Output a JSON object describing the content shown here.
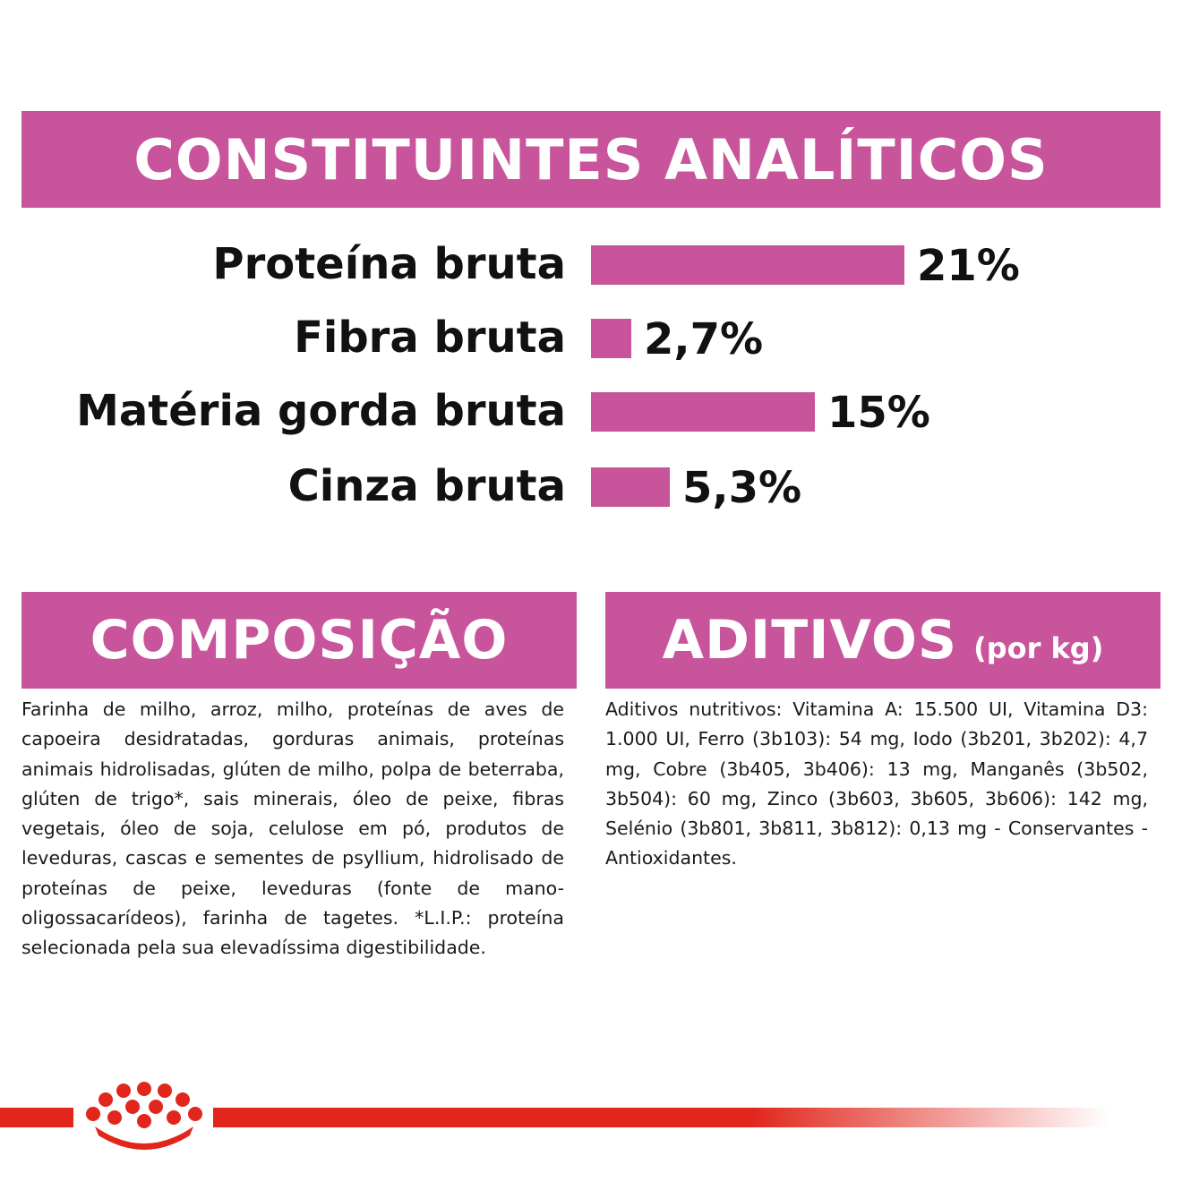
{
  "analytics": {
    "title": "CONSTITUINTES ANALÍTICOS",
    "items": [
      {
        "label": "Proteína bruta",
        "value": "21%",
        "percent": 21
      },
      {
        "label": "Fibra bruta",
        "value": "2,7%",
        "percent": 2.7
      },
      {
        "label": "Matéria gorda bruta",
        "value": "15%",
        "percent": 15
      },
      {
        "label": "Cinza bruta",
        "value": "5,3%",
        "percent": 5.3
      }
    ]
  },
  "composition": {
    "title": "COMPOSIÇÃO",
    "text": "Farinha de milho, arroz, milho, proteínas de aves de capoeira desidratadas, gorduras animais, proteínas animais hidrolisadas, glúten de milho, polpa de beterraba, glúten de trigo*, sais minerais, óleo de peixe, fibras vegetais, óleo de soja, celulose em pó, produtos de leveduras, cascas e sementes de psyllium, hidrolisado de proteínas de peixe, leveduras (fonte de mano-oligossacarídeos), farinha de tagetes. *L.I.P.: proteína selecionada pela sua elevadíssima digestibilidade."
  },
  "additives": {
    "title": "ADITIVOS",
    "unit": "(por kg)",
    "text": "Aditivos nutritivos: Vitamina A: 15.500 UI, Vitamina D3: 1.000 UI, Ferro (3b103): 54 mg, Iodo (3b201, 3b202): 4,7 mg, Cobre (3b405, 3b406): 13 mg, Manganês (3b502, 3b504): 60 mg, Zinco (3b603, 3b605, 3b606): 142 mg, Selénio (3b801, 3b811, 3b812): 0,13 mg - Conservantes - Antioxidantes."
  },
  "colors": {
    "accent": "#c8559b",
    "brand_red": "#e1261c",
    "text": "#111111"
  },
  "footer": {
    "logo_icon": "crown-icon"
  }
}
